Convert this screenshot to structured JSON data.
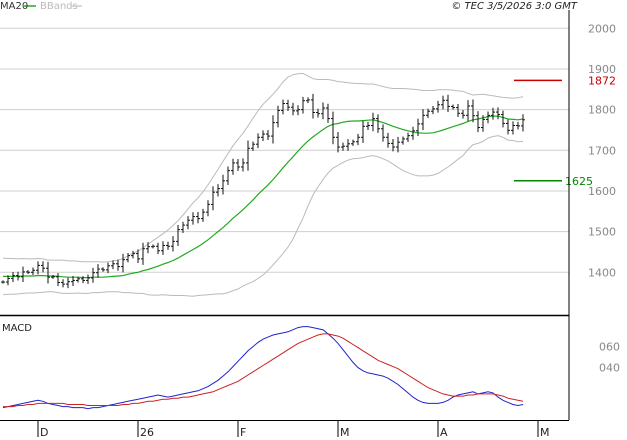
{
  "header": {
    "ma_label": "MA20",
    "bb_label": "BBands",
    "copyright": "© TEC 3/5/2026 3:0 GMT"
  },
  "macd_label": "MACD",
  "levels": [
    {
      "name": "resistance",
      "value": 1872,
      "label": "1872",
      "color": "#cc0000"
    },
    {
      "name": "support",
      "value": 1625,
      "label": "1625",
      "color": "#008800"
    }
  ],
  "colors": {
    "ma": "#22aa22",
    "bbands": "#bbbbbb",
    "bars": "#111111",
    "macd": "#2222cc",
    "signal": "#cc2222"
  },
  "chart_data": [
    {
      "type": "line",
      "title": "",
      "y_ticks": [
        "2000",
        "1900",
        "1800",
        "1700",
        "1600",
        "1500",
        "1400"
      ],
      "ylim": [
        1295,
        2045
      ],
      "x_labels": [
        "D",
        "26",
        "F",
        "M",
        "A",
        "M"
      ],
      "x_label_index": [
        3,
        23,
        43,
        63,
        83,
        103
      ],
      "n_bars": 105,
      "price": [
        1376,
        1385,
        1392,
        1389,
        1401,
        1400,
        1405,
        1417,
        1410,
        1388,
        1389,
        1375,
        1371,
        1377,
        1380,
        1384,
        1380,
        1386,
        1399,
        1408,
        1406,
        1416,
        1421,
        1414,
        1431,
        1441,
        1446,
        1433,
        1458,
        1463,
        1464,
        1453,
        1466,
        1464,
        1476,
        1505,
        1516,
        1528,
        1537,
        1532,
        1548,
        1567,
        1597,
        1606,
        1625,
        1650,
        1669,
        1659,
        1669,
        1705,
        1715,
        1732,
        1740,
        1735,
        1768,
        1798,
        1815,
        1806,
        1797,
        1800,
        1822,
        1824,
        1793,
        1790,
        1804,
        1778,
        1732,
        1708,
        1710,
        1716,
        1721,
        1732,
        1759,
        1761,
        1778,
        1753,
        1732,
        1717,
        1708,
        1720,
        1728,
        1736,
        1748,
        1765,
        1786,
        1796,
        1802,
        1812,
        1823,
        1808,
        1805,
        1791,
        1786,
        1809,
        1785,
        1756,
        1776,
        1786,
        1794,
        1788,
        1766,
        1749,
        1761,
        1760,
        1775
      ],
      "ma20": [
        1390,
        1390,
        1390,
        1390,
        1391,
        1391,
        1391,
        1392,
        1392,
        1391,
        1391,
        1390,
        1389,
        1388,
        1388,
        1388,
        1387,
        1387,
        1388,
        1388,
        1388,
        1389,
        1390,
        1391,
        1392,
        1395,
        1398,
        1400,
        1404,
        1407,
        1411,
        1415,
        1420,
        1424,
        1429,
        1435,
        1442,
        1449,
        1456,
        1463,
        1471,
        1480,
        1490,
        1500,
        1510,
        1521,
        1533,
        1543,
        1554,
        1566,
        1578,
        1591,
        1603,
        1615,
        1628,
        1642,
        1657,
        1671,
        1684,
        1698,
        1711,
        1723,
        1733,
        1742,
        1751,
        1759,
        1764,
        1766,
        1769,
        1771,
        1772,
        1772,
        1773,
        1774,
        1775,
        1772,
        1768,
        1764,
        1759,
        1755,
        1751,
        1748,
        1745,
        1743,
        1742,
        1742,
        1743,
        1746,
        1750,
        1754,
        1758,
        1762,
        1766,
        1771,
        1775,
        1777,
        1780,
        1783,
        1784,
        1784,
        1781,
        1777,
        1776,
        1775,
        1777
      ],
      "bb_upper": [
        1435,
        1434,
        1434,
        1433,
        1434,
        1433,
        1433,
        1434,
        1433,
        1430,
        1430,
        1430,
        1430,
        1428,
        1428,
        1427,
        1426,
        1426,
        1426,
        1426,
        1425,
        1426,
        1428,
        1430,
        1434,
        1440,
        1447,
        1452,
        1460,
        1469,
        1478,
        1486,
        1495,
        1504,
        1515,
        1527,
        1541,
        1556,
        1571,
        1583,
        1598,
        1615,
        1634,
        1653,
        1673,
        1692,
        1711,
        1727,
        1742,
        1760,
        1779,
        1797,
        1813,
        1825,
        1838,
        1852,
        1868,
        1880,
        1886,
        1888,
        1889,
        1883,
        1876,
        1874,
        1874,
        1874,
        1872,
        1869,
        1868,
        1866,
        1865,
        1864,
        1864,
        1863,
        1863,
        1860,
        1857,
        1854,
        1852,
        1852,
        1852,
        1851,
        1850,
        1849,
        1847,
        1847,
        1847,
        1849,
        1849,
        1849,
        1848,
        1846,
        1845,
        1840,
        1836,
        1837,
        1838,
        1836,
        1834,
        1832,
        1830,
        1829,
        1828,
        1829,
        1832
      ],
      "bb_lower": [
        1345,
        1346,
        1346,
        1347,
        1348,
        1349,
        1349,
        1350,
        1351,
        1352,
        1352,
        1350,
        1348,
        1348,
        1348,
        1349,
        1348,
        1348,
        1350,
        1350,
        1351,
        1352,
        1352,
        1352,
        1350,
        1350,
        1349,
        1348,
        1348,
        1345,
        1344,
        1344,
        1345,
        1344,
        1343,
        1343,
        1343,
        1342,
        1341,
        1343,
        1344,
        1345,
        1346,
        1347,
        1347,
        1350,
        1355,
        1359,
        1366,
        1372,
        1377,
        1385,
        1393,
        1405,
        1418,
        1432,
        1446,
        1462,
        1482,
        1508,
        1533,
        1563,
        1590,
        1610,
        1628,
        1644,
        1656,
        1663,
        1670,
        1676,
        1679,
        1680,
        1682,
        1685,
        1687,
        1684,
        1679,
        1674,
        1666,
        1658,
        1650,
        1645,
        1640,
        1637,
        1637,
        1637,
        1639,
        1643,
        1651,
        1659,
        1668,
        1678,
        1687,
        1702,
        1714,
        1717,
        1722,
        1730,
        1734,
        1736,
        1732,
        1725,
        1724,
        1721,
        1722
      ]
    },
    {
      "type": "line",
      "title": "",
      "y_ticks": [
        "060",
        "040"
      ],
      "ylim": [
        -5,
        90
      ],
      "series": [
        {
          "name": "",
          "values": [
            2,
            3,
            4,
            5,
            6,
            7,
            8,
            9,
            8,
            6,
            5,
            4,
            3,
            3,
            2,
            2,
            2,
            1,
            2,
            2,
            3,
            4,
            5,
            6,
            7,
            8,
            9,
            10,
            11,
            12,
            13,
            14,
            13,
            12,
            13,
            14,
            15,
            16,
            17,
            18,
            20,
            22,
            25,
            28,
            32,
            36,
            41,
            46,
            51,
            56,
            60,
            64,
            67,
            69,
            71,
            72,
            73,
            74,
            76,
            78,
            79,
            79,
            78,
            77,
            76,
            72,
            68,
            63,
            57,
            51,
            45,
            40,
            37,
            35,
            34,
            33,
            32,
            30,
            27,
            24,
            20,
            16,
            12,
            9,
            7,
            6,
            6,
            6,
            7,
            9,
            12,
            14,
            15,
            16,
            17,
            15,
            16,
            17,
            16,
            12,
            9,
            7,
            5,
            4,
            5
          ]
        },
        {
          "name": "",
          "values": [
            3,
            3,
            3,
            4,
            4,
            5,
            5,
            6,
            6,
            6,
            6,
            6,
            6,
            5,
            5,
            5,
            5,
            4,
            4,
            4,
            4,
            4,
            4,
            4,
            5,
            5,
            6,
            6,
            7,
            8,
            8,
            9,
            10,
            10,
            11,
            11,
            12,
            12,
            13,
            14,
            15,
            16,
            17,
            19,
            21,
            23,
            25,
            27,
            30,
            33,
            36,
            39,
            42,
            45,
            48,
            51,
            54,
            57,
            60,
            63,
            65,
            67,
            69,
            71,
            72,
            72,
            71,
            70,
            68,
            65,
            62,
            59,
            56,
            53,
            50,
            47,
            45,
            43,
            41,
            39,
            36,
            33,
            30,
            27,
            24,
            21,
            19,
            17,
            15,
            14,
            13,
            13,
            13,
            14,
            14,
            15,
            15,
            15,
            15,
            14,
            13,
            11,
            10,
            9,
            8
          ]
        }
      ]
    }
  ]
}
